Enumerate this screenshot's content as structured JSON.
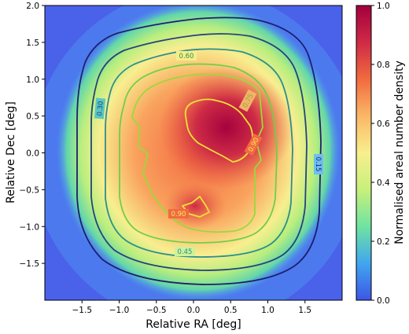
{
  "chart_data": {
    "type": "heatmap",
    "title": "",
    "xlabel": "Relative RA [deg]",
    "ylabel": "Relative Dec [deg]",
    "xlim": [
      -2.0,
      2.0
    ],
    "ylim": [
      -2.0,
      2.0
    ],
    "x_ticks": [
      -1.5,
      -1.0,
      -0.5,
      0.0,
      0.5,
      1.0,
      1.5
    ],
    "x_tick_labels": [
      "−1.5",
      "−1.0",
      "−0.5",
      "0.0",
      "0.5",
      "1.0",
      "1.5"
    ],
    "y_ticks": [
      2.0,
      1.5,
      1.0,
      0.5,
      0.0,
      -0.5,
      -1.0,
      -1.5
    ],
    "y_tick_labels": [
      "2.0",
      "1.5",
      "1.0",
      "0.5",
      "0.0",
      "−0.5",
      "−1.0",
      "−1.5"
    ],
    "colorbar": {
      "label": "Normalised areal number density",
      "colormap": "Spectral_r",
      "range": [
        0.0,
        1.0
      ],
      "ticks": [
        0.0,
        0.2,
        0.4,
        0.6,
        0.8,
        1.0
      ],
      "tick_labels": [
        "0.0",
        "0.2",
        "0.4",
        "0.6",
        "0.8",
        "1.0"
      ],
      "stops": [
        "#3d55e6",
        "#41a6f0",
        "#6fe3a1",
        "#c7f07a",
        "#f8ef8e",
        "#fbb766",
        "#f16b3f",
        "#cf2a45",
        "#a3003e"
      ]
    },
    "density_peaks": [
      {
        "x": 0.45,
        "y": 0.25,
        "value": 1.0
      },
      {
        "x": 0.05,
        "y": -0.7,
        "value": 0.93
      }
    ],
    "contours": [
      {
        "level": 0.15,
        "label": "0.15",
        "color": "#1f1f6e"
      },
      {
        "level": 0.3,
        "label": "0.30",
        "color": "#26427f"
      },
      {
        "level": 0.45,
        "label": "0.45",
        "color": "#2b8f8c"
      },
      {
        "level": 0.6,
        "label": "0.60",
        "color": "#6fcf48"
      },
      {
        "level": 0.75,
        "label": "0.75",
        "color": "#9ad93b"
      },
      {
        "level": 0.9,
        "label": "0.90",
        "color": "#f0e233"
      }
    ]
  }
}
